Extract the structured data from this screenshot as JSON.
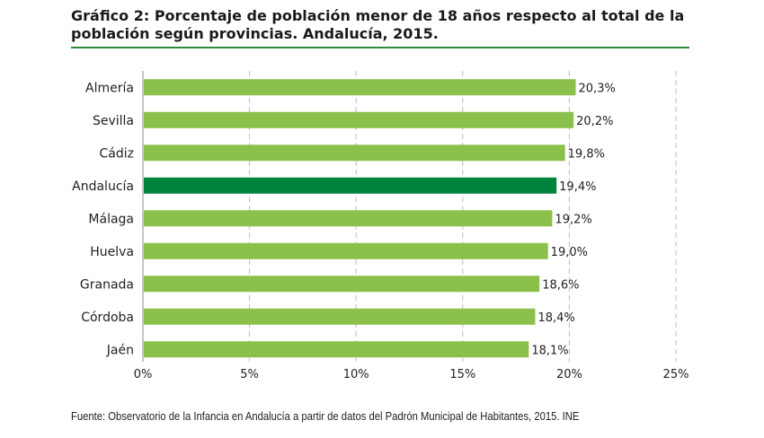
{
  "title": "Gráfico 2: Porcentaje de población menor de 18 años respecto al total de la población según provincias. Andalucía, 2015.",
  "source": "Fuente: Observatorio de la Infancia en Andalucía a partir de datos del Padrón Municipal de Habitantes, 2015. INE",
  "colors": {
    "bar": "#8bc04a",
    "highlight": "#00843d",
    "gridline": "#bdbdbd"
  },
  "chart_data": {
    "type": "bar",
    "orientation": "horizontal",
    "title": "Gráfico 2: Porcentaje de población menor de 18 años respecto al total de la población según provincias. Andalucía, 2015.",
    "categories": [
      "Almería",
      "Sevilla",
      "Cádiz",
      "Andalucía",
      "Málaga",
      "Huelva",
      "Granada",
      "Córdoba",
      "Jaén"
    ],
    "values": [
      20.3,
      20.2,
      19.8,
      19.4,
      19.2,
      19.0,
      18.6,
      18.4,
      18.1
    ],
    "value_labels": [
      "20,3%",
      "20,2%",
      "19,8%",
      "19,4%",
      "19,2%",
      "19,0%",
      "18,6%",
      "18,4%",
      "18,1%"
    ],
    "highlight_category": "Andalucía",
    "xlim": [
      0,
      25
    ],
    "xticks": [
      0,
      5,
      10,
      15,
      20,
      25
    ],
    "xtick_labels": [
      "0%",
      "5%",
      "10%",
      "15%",
      "20%",
      "25%"
    ],
    "xlabel": "",
    "ylabel": "",
    "grid": "vertical-dashed",
    "legend": "none"
  }
}
